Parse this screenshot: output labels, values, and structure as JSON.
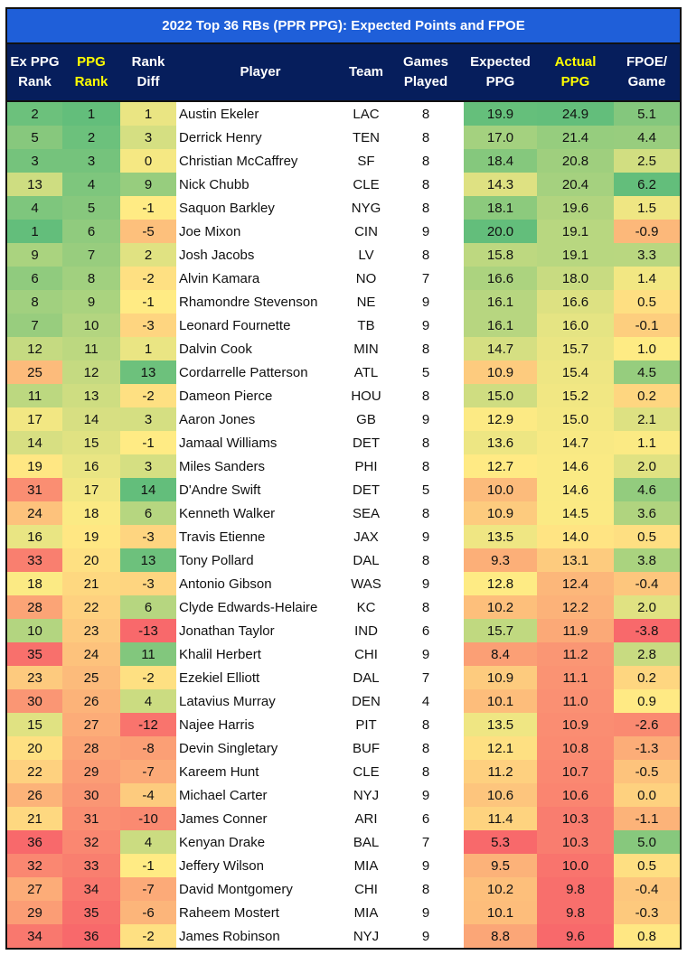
{
  "title": "2022 Top 36 RBs (PPR PPG): Expected Points and FPOE",
  "chart_data": {
    "type": "table",
    "title": "2022 Top 36 RBs (PPR PPG): Expected Points and FPOE",
    "columns": [
      {
        "key": "ex_rank",
        "l1": "Ex PPG",
        "l2": "Rank",
        "highlight": false,
        "color_scale": "low-green"
      },
      {
        "key": "ppg_rank",
        "l1": "PPG",
        "l2": "Rank",
        "highlight": true,
        "color_scale": "low-green"
      },
      {
        "key": "rank_diff",
        "l1": "Rank",
        "l2": "Diff",
        "highlight": false,
        "color_scale": "high-green"
      },
      {
        "key": "player",
        "l1": "Player",
        "l2": "",
        "highlight": false,
        "color_scale": "none"
      },
      {
        "key": "team",
        "l1": "Team",
        "l2": "",
        "highlight": false,
        "color_scale": "none"
      },
      {
        "key": "games",
        "l1": "Games",
        "l2": "Played",
        "highlight": false,
        "color_scale": "none"
      },
      {
        "key": "exp_ppg",
        "l1": "Expected",
        "l2": "PPG",
        "highlight": false,
        "color_scale": "high-green"
      },
      {
        "key": "act_ppg",
        "l1": "Actual",
        "l2": "PPG",
        "highlight": true,
        "color_scale": "high-green"
      },
      {
        "key": "fpoe",
        "l1": "FPOE/",
        "l2": "Game",
        "highlight": false,
        "color_scale": "high-green"
      }
    ],
    "colors": {
      "low": "#f8696b",
      "mid": "#ffeb84",
      "high": "#63be7b",
      "title_bg": "#1f5fd9",
      "header_bg": "#061e5c",
      "header_highlight": "#ffff00"
    },
    "rows": [
      [
        "2",
        "1",
        "1",
        "Austin Ekeler",
        "LAC",
        "8",
        "19.9",
        "24.9",
        "5.1"
      ],
      [
        "5",
        "2",
        "3",
        "Derrick Henry",
        "TEN",
        "8",
        "17.0",
        "21.4",
        "4.4"
      ],
      [
        "3",
        "3",
        "0",
        "Christian McCaffrey",
        "SF",
        "8",
        "18.4",
        "20.8",
        "2.5"
      ],
      [
        "13",
        "4",
        "9",
        "Nick Chubb",
        "CLE",
        "8",
        "14.3",
        "20.4",
        "6.2"
      ],
      [
        "4",
        "5",
        "-1",
        "Saquon Barkley",
        "NYG",
        "8",
        "18.1",
        "19.6",
        "1.5"
      ],
      [
        "1",
        "6",
        "-5",
        "Joe Mixon",
        "CIN",
        "9",
        "20.0",
        "19.1",
        "-0.9"
      ],
      [
        "9",
        "7",
        "2",
        "Josh Jacobs",
        "LV",
        "8",
        "15.8",
        "19.1",
        "3.3"
      ],
      [
        "6",
        "8",
        "-2",
        "Alvin Kamara",
        "NO",
        "7",
        "16.6",
        "18.0",
        "1.4"
      ],
      [
        "8",
        "9",
        "-1",
        "Rhamondre Stevenson",
        "NE",
        "9",
        "16.1",
        "16.6",
        "0.5"
      ],
      [
        "7",
        "10",
        "-3",
        "Leonard Fournette",
        "TB",
        "9",
        "16.1",
        "16.0",
        "-0.1"
      ],
      [
        "12",
        "11",
        "1",
        "Dalvin Cook",
        "MIN",
        "8",
        "14.7",
        "15.7",
        "1.0"
      ],
      [
        "25",
        "12",
        "13",
        "Cordarrelle Patterson",
        "ATL",
        "5",
        "10.9",
        "15.4",
        "4.5"
      ],
      [
        "11",
        "13",
        "-2",
        "Dameon Pierce",
        "HOU",
        "8",
        "15.0",
        "15.2",
        "0.2"
      ],
      [
        "17",
        "14",
        "3",
        "Aaron Jones",
        "GB",
        "9",
        "12.9",
        "15.0",
        "2.1"
      ],
      [
        "14",
        "15",
        "-1",
        "Jamaal Williams",
        "DET",
        "8",
        "13.6",
        "14.7",
        "1.1"
      ],
      [
        "19",
        "16",
        "3",
        "Miles Sanders",
        "PHI",
        "8",
        "12.7",
        "14.6",
        "2.0"
      ],
      [
        "31",
        "17",
        "14",
        "D'Andre Swift",
        "DET",
        "5",
        "10.0",
        "14.6",
        "4.6"
      ],
      [
        "24",
        "18",
        "6",
        "Kenneth Walker",
        "SEA",
        "8",
        "10.9",
        "14.5",
        "3.6"
      ],
      [
        "16",
        "19",
        "-3",
        "Travis Etienne",
        "JAX",
        "9",
        "13.5",
        "14.0",
        "0.5"
      ],
      [
        "33",
        "20",
        "13",
        "Tony Pollard",
        "DAL",
        "8",
        "9.3",
        "13.1",
        "3.8"
      ],
      [
        "18",
        "21",
        "-3",
        "Antonio Gibson",
        "WAS",
        "9",
        "12.8",
        "12.4",
        "-0.4"
      ],
      [
        "28",
        "22",
        "6",
        "Clyde Edwards-Helaire",
        "KC",
        "8",
        "10.2",
        "12.2",
        "2.0"
      ],
      [
        "10",
        "23",
        "-13",
        "Jonathan Taylor",
        "IND",
        "6",
        "15.7",
        "11.9",
        "-3.8"
      ],
      [
        "35",
        "24",
        "11",
        "Khalil Herbert",
        "CHI",
        "9",
        "8.4",
        "11.2",
        "2.8"
      ],
      [
        "23",
        "25",
        "-2",
        "Ezekiel Elliott",
        "DAL",
        "7",
        "10.9",
        "11.1",
        "0.2"
      ],
      [
        "30",
        "26",
        "4",
        "Latavius Murray",
        "DEN",
        "4",
        "10.1",
        "11.0",
        "0.9"
      ],
      [
        "15",
        "27",
        "-12",
        "Najee Harris",
        "PIT",
        "8",
        "13.5",
        "10.9",
        "-2.6"
      ],
      [
        "20",
        "28",
        "-8",
        "Devin Singletary",
        "BUF",
        "8",
        "12.1",
        "10.8",
        "-1.3"
      ],
      [
        "22",
        "29",
        "-7",
        "Kareem Hunt",
        "CLE",
        "8",
        "11.2",
        "10.7",
        "-0.5"
      ],
      [
        "26",
        "30",
        "-4",
        "Michael Carter",
        "NYJ",
        "9",
        "10.6",
        "10.6",
        "0.0"
      ],
      [
        "21",
        "31",
        "-10",
        "James Conner",
        "ARI",
        "6",
        "11.4",
        "10.3",
        "-1.1"
      ],
      [
        "36",
        "32",
        "4",
        "Kenyan Drake",
        "BAL",
        "7",
        "5.3",
        "10.3",
        "5.0"
      ],
      [
        "32",
        "33",
        "-1",
        "Jeffery Wilson",
        "MIA",
        "9",
        "9.5",
        "10.0",
        "0.5"
      ],
      [
        "27",
        "34",
        "-7",
        "David Montgomery",
        "CHI",
        "8",
        "10.2",
        "9.8",
        "-0.4"
      ],
      [
        "29",
        "35",
        "-6",
        "Raheem Mostert",
        "MIA",
        "9",
        "10.1",
        "9.8",
        "-0.3"
      ],
      [
        "34",
        "36",
        "-2",
        "James Robinson",
        "NYJ",
        "9",
        "8.8",
        "9.6",
        "0.8"
      ]
    ]
  }
}
